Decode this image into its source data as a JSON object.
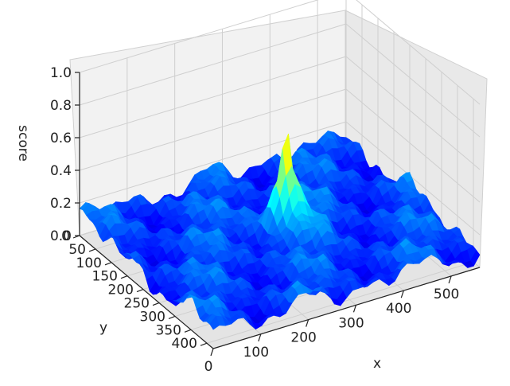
{
  "chart_data": {
    "type": "surface3d",
    "zlabel": "score",
    "xlabel": "x",
    "ylabel": "y",
    "xlim": [
      0,
      560
    ],
    "ylim": [
      0,
      420
    ],
    "zlim": [
      0,
      1.0
    ],
    "x_ticks": [
      "0",
      "100",
      "200",
      "300",
      "400",
      "500"
    ],
    "y_ticks": [
      "0",
      "50",
      "100",
      "150",
      "200",
      "250",
      "300",
      "350",
      "400"
    ],
    "z_ticks": [
      "0.0",
      "0.2",
      "0.4",
      "0.6",
      "0.8",
      "1.0"
    ],
    "colormap": "jet",
    "peak": {
      "x": 300,
      "y": 200,
      "score": 0.93
    },
    "baseline_score_range": [
      0.05,
      0.2
    ],
    "grid": true
  }
}
